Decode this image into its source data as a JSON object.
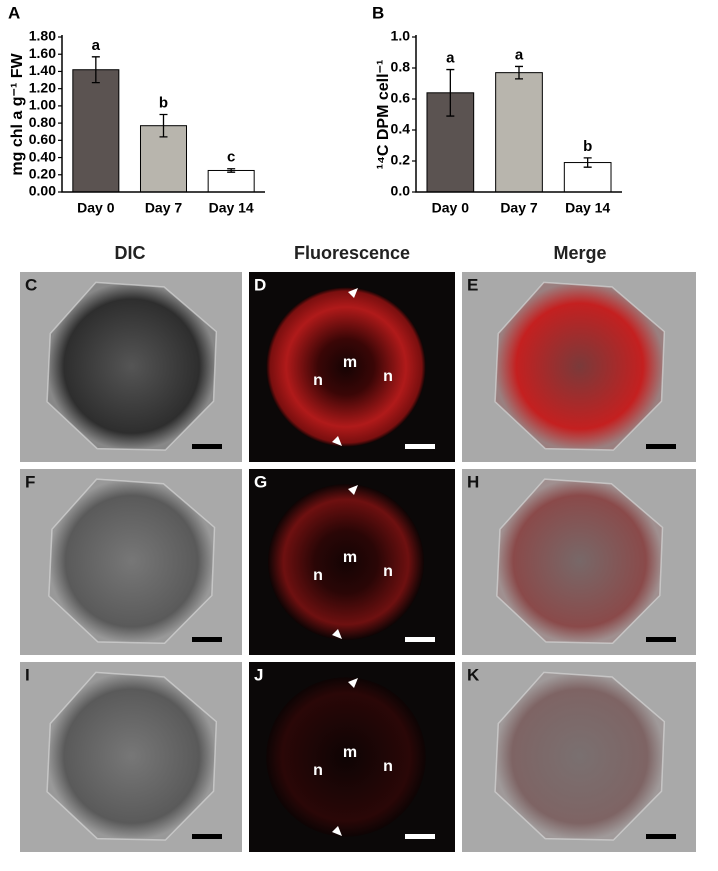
{
  "chart_data": [
    {
      "type": "bar",
      "panel": "A",
      "y_label": "mg chl a g⁻¹ FW",
      "categories": [
        "Day 0",
        "Day 7",
        "Day 14"
      ],
      "values": [
        1.42,
        0.77,
        0.25
      ],
      "errors": [
        0.15,
        0.13,
        0.02
      ],
      "significance": [
        "a",
        "b",
        "c"
      ],
      "colors": [
        "#5b5351",
        "#b8b5ad",
        "#ffffff"
      ],
      "ylim": [
        0,
        1.8
      ],
      "yticks": [
        {
          "value": 0,
          "label": "0.00"
        },
        {
          "value": 0.2,
          "label": "0.20"
        },
        {
          "value": 0.4,
          "label": "0.40"
        },
        {
          "value": 0.6,
          "label": "0.60"
        },
        {
          "value": 0.8,
          "label": "0.80"
        },
        {
          "value": 1,
          "label": "1.00"
        },
        {
          "value": 1.2,
          "label": "1.20"
        },
        {
          "value": 1.4,
          "label": "1.40"
        },
        {
          "value": 1.6,
          "label": "1.60"
        },
        {
          "value": 1.8,
          "label": "1.80"
        }
      ]
    },
    {
      "type": "bar",
      "panel": "B",
      "y_label": "¹⁴C DPM cell⁻¹",
      "categories": [
        "Day 0",
        "Day 7",
        "Day 14"
      ],
      "values": [
        0.64,
        0.77,
        0.19
      ],
      "errors": [
        0.15,
        0.04,
        0.03
      ],
      "significance": [
        "a",
        "a",
        "b"
      ],
      "colors": [
        "#5b5351",
        "#b8b5ad",
        "#ffffff"
      ],
      "ylim": [
        0,
        1
      ],
      "yticks": [
        {
          "value": 0,
          "label": "0.0"
        },
        0.2,
        0.4,
        0.6,
        0.8,
        {
          "value": 1,
          "label": "1.0"
        }
      ]
    }
  ],
  "figure": {
    "columns": [
      "DIC",
      "Fluorescence",
      "Merge"
    ],
    "panels": [
      [
        "C",
        "D",
        "E"
      ],
      [
        "F",
        "G",
        "H"
      ],
      [
        "I",
        "J",
        "K"
      ]
    ],
    "fluorescence_labels": [
      [
        "n",
        "m",
        "n"
      ],
      [
        "n",
        "m",
        "n"
      ],
      [
        "n",
        "m",
        "n"
      ]
    ]
  }
}
